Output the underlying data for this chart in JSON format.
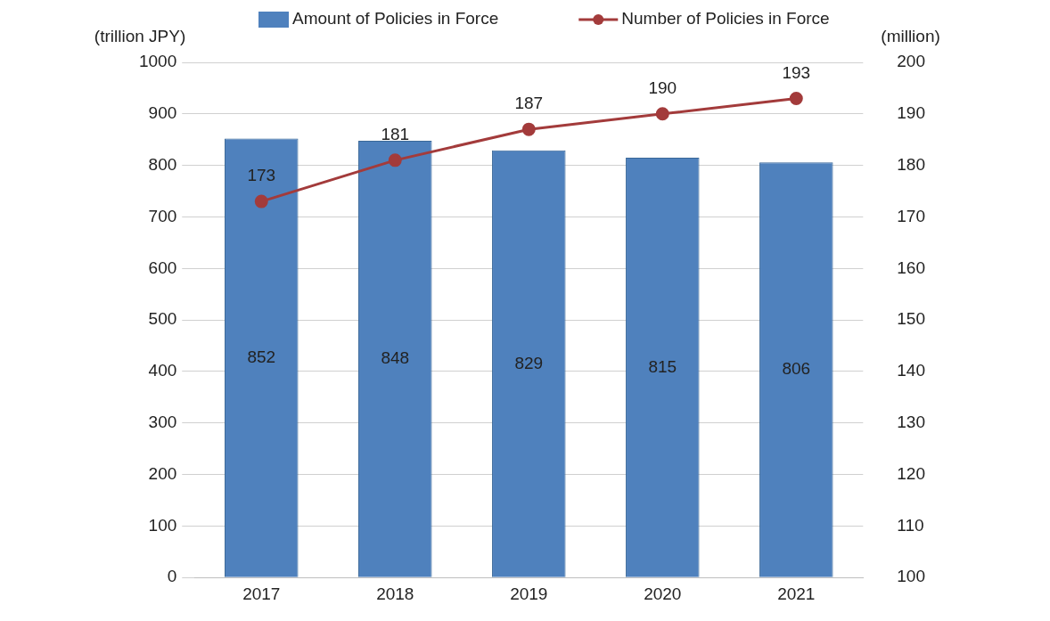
{
  "chart_data": {
    "type": "bar",
    "ylabel": "(trillion JPY)",
    "y2label": "(million)",
    "categories": [
      "2017",
      "2018",
      "2019",
      "2020",
      "2021"
    ],
    "series": [
      {
        "name": "Amount of Policies in Force",
        "color": "#4f81bd",
        "values": [
          852,
          848,
          829,
          815,
          806
        ]
      },
      {
        "name": "Number of Policies in Force",
        "type": "line",
        "axis": "y2",
        "color": "#a33b3b",
        "marker": "circle",
        "values": [
          173,
          181,
          187,
          190,
          193
        ]
      }
    ],
    "ylim": [
      0,
      1000
    ],
    "yticks": [
      0,
      100,
      200,
      300,
      400,
      500,
      600,
      700,
      800,
      900,
      1000
    ],
    "y2lim": [
      100,
      200
    ],
    "y2ticks": [
      100,
      110,
      120,
      130,
      140,
      150,
      160,
      170,
      180,
      190,
      200
    ],
    "grid": "y",
    "legend": "top",
    "data_labels": true
  }
}
